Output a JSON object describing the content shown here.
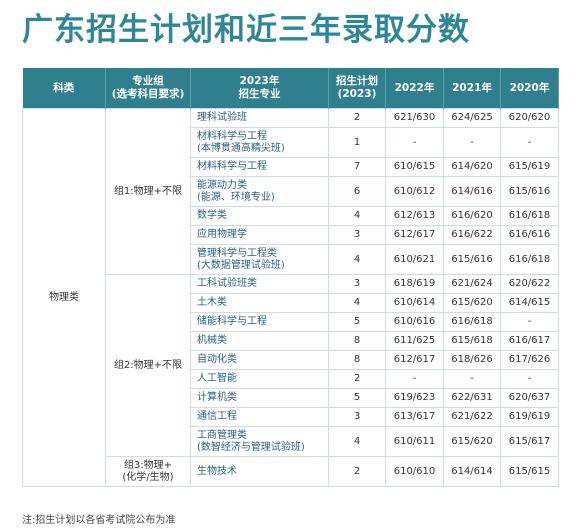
{
  "title": "广东招生计划和近三年录取分数",
  "table": {
    "headers": [
      [
        "科类"
      ],
      [
        "专业组",
        "(选考科目要求)"
      ],
      [
        "2023年",
        "招生专业"
      ],
      [
        "招生计划",
        "(2023)"
      ],
      [
        "2022年"
      ],
      [
        "2021年"
      ],
      [
        "2020年"
      ]
    ],
    "category": "物理类",
    "groups": [
      {
        "label": [
          "组1:物理+不限"
        ],
        "rows": [
          {
            "major": [
              "理科试验班"
            ],
            "plan": 2,
            "scores": [
              "621/630",
              "624/625",
              "620/620"
            ]
          },
          {
            "major": [
              "材料科学与工程",
              "(本博贯通高精尖班)"
            ],
            "plan": 1,
            "scores": [
              "-",
              "-",
              "-"
            ]
          },
          {
            "major": [
              "材料科学与工程"
            ],
            "plan": 7,
            "scores": [
              "610/615",
              "614/620",
              "615/619"
            ]
          },
          {
            "major": [
              "能源动力类",
              "(能源、环境专业)"
            ],
            "plan": 6,
            "scores": [
              "610/612",
              "614/616",
              "615/616"
            ]
          },
          {
            "major": [
              "数学类"
            ],
            "plan": 4,
            "scores": [
              "612/613",
              "616/620",
              "616/618"
            ]
          },
          {
            "major": [
              "应用物理学"
            ],
            "plan": 3,
            "scores": [
              "612/617",
              "616/622",
              "616/616"
            ]
          },
          {
            "major": [
              "管理科学与工程类",
              "(大数据管理试验班)"
            ],
            "plan": 4,
            "scores": [
              "610/621",
              "615/616",
              "616/618"
            ]
          }
        ]
      },
      {
        "label": [
          "组2:物理+不限"
        ],
        "rows": [
          {
            "major": [
              "工科试验班类"
            ],
            "plan": 3,
            "scores": [
              "618/619",
              "621/624",
              "620/622"
            ]
          },
          {
            "major": [
              "土木类"
            ],
            "plan": 4,
            "scores": [
              "610/614",
              "615/620",
              "614/615"
            ]
          },
          {
            "major": [
              "储能科学与工程"
            ],
            "plan": 5,
            "scores": [
              "610/616",
              "616/618",
              "-"
            ]
          },
          {
            "major": [
              "机械类"
            ],
            "plan": 8,
            "scores": [
              "611/625",
              "615/618",
              "616/617"
            ]
          },
          {
            "major": [
              "自动化类"
            ],
            "plan": 8,
            "scores": [
              "612/617",
              "618/626",
              "617/626"
            ]
          },
          {
            "major": [
              "人工智能"
            ],
            "plan": 2,
            "scores": [
              "-",
              "-",
              "-"
            ]
          },
          {
            "major": [
              "计算机类"
            ],
            "plan": 5,
            "scores": [
              "619/623",
              "622/631",
              "620/637"
            ]
          },
          {
            "major": [
              "通信工程"
            ],
            "plan": 3,
            "scores": [
              "613/617",
              "621/622",
              "619/619"
            ]
          },
          {
            "major": [
              "工商管理类",
              "(数智经济与管理试验班)"
            ],
            "plan": 4,
            "scores": [
              "610/611",
              "615/620",
              "615/617"
            ]
          }
        ]
      },
      {
        "label": [
          "组3:物理+",
          "(化学/生物)"
        ],
        "rows": [
          {
            "major": [
              "生物技术"
            ],
            "plan": 2,
            "scores": [
              "610/610",
              "614/614",
              "615/615"
            ]
          }
        ]
      }
    ]
  },
  "footnote": "注:招生计划以各省考试院公布为准"
}
